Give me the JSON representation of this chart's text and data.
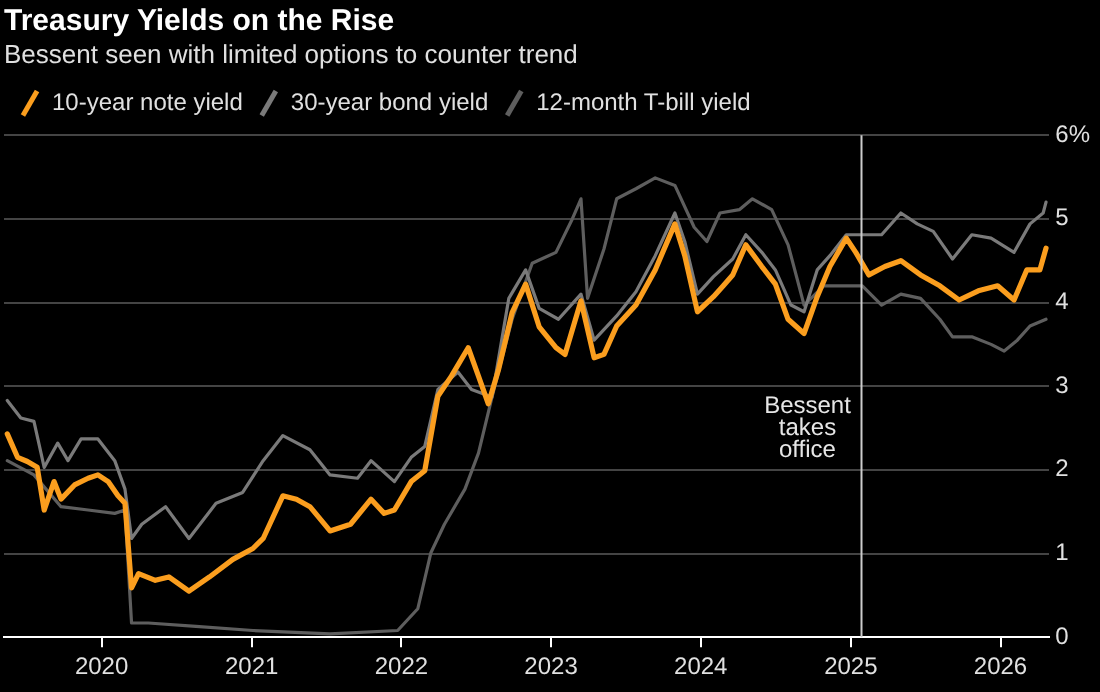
{
  "chart_data": {
    "type": "line",
    "title": "Treasury Yields on the Rise",
    "subtitle": "Bessent seen with limited options to counter trend",
    "xlim": [
      "2019-05-08",
      "2026-04-30"
    ],
    "xticks": [
      "2020",
      "2021",
      "2022",
      "2023",
      "2024",
      "2025",
      "2026"
    ],
    "ylim": [
      0,
      6
    ],
    "yticks": [
      0,
      1,
      2,
      3,
      4,
      5,
      {
        "value": 6,
        "label": "6%"
      }
    ],
    "grid": "y",
    "legend": "top left",
    "ref_lines": [
      {
        "axis": "x",
        "value": "2025-01-27",
        "label": "Bessent takes office",
        "color": "#cccccc"
      }
    ],
    "series": [
      {
        "name": "10-year note yield",
        "color": "#fb9e1e",
        "x": [
          "2019-05-16",
          "2019-06-10",
          "2019-07-04",
          "2019-07-28",
          "2019-08-14",
          "2019-09-07",
          "2019-09-24",
          "2019-10-27",
          "2019-11-29",
          "2019-12-23",
          "2020-01-17",
          "2020-02-10",
          "2020-02-27",
          "2020-03-14",
          "2020-03-31",
          "2020-05-11",
          "2020-06-13",
          "2020-08-01",
          "2020-09-20",
          "2020-11-16",
          "2021-01-04",
          "2021-01-29",
          "2021-03-18",
          "2021-04-20",
          "2021-05-23",
          "2021-07-11",
          "2021-08-30",
          "2021-10-19",
          "2021-11-20",
          "2021-12-15",
          "2022-01-25",
          "2022-02-27",
          "2022-03-31",
          "2022-05-03",
          "2022-06-13",
          "2022-07-08",
          "2022-08-01",
          "2022-08-26",
          "2022-09-28",
          "2022-10-31",
          "2022-12-03",
          "2023-01-13",
          "2023-02-04",
          "2023-03-15",
          "2023-04-16",
          "2023-05-10",
          "2023-06-10",
          "2023-07-27",
          "2023-09-12",
          "2023-10-30",
          "2023-11-23",
          "2023-12-24",
          "2024-02-01",
          "2024-02-25",
          "2024-03-19",
          "2024-04-20",
          "2024-05-29",
          "2024-07-01",
          "2024-08-01",
          "2024-09-09",
          "2024-10-11",
          "2024-11-11",
          "2024-12-21",
          "2025-01-13",
          "2025-02-14",
          "2025-03-25",
          "2025-05-03",
          "2025-06-20",
          "2025-08-06",
          "2025-09-22",
          "2025-11-08",
          "2025-12-25",
          "2026-02-03",
          "2026-03-06",
          "2026-04-07",
          "2026-04-22"
        ],
        "values": [
          2.43,
          2.15,
          2.1,
          2.03,
          1.52,
          1.86,
          1.65,
          1.82,
          1.9,
          1.94,
          1.86,
          1.69,
          1.6,
          0.59,
          0.76,
          0.68,
          0.72,
          0.55,
          0.72,
          0.93,
          1.06,
          1.18,
          1.69,
          1.65,
          1.56,
          1.27,
          1.35,
          1.65,
          1.48,
          1.52,
          1.86,
          1.99,
          2.88,
          3.12,
          3.46,
          3.12,
          2.79,
          3.2,
          3.88,
          4.22,
          3.71,
          3.46,
          3.38,
          4.02,
          3.34,
          3.38,
          3.72,
          3.97,
          4.39,
          4.94,
          4.56,
          3.89,
          4.07,
          4.2,
          4.33,
          4.69,
          4.43,
          4.22,
          3.8,
          3.63,
          4.07,
          4.43,
          4.77,
          4.6,
          4.33,
          4.43,
          4.5,
          4.33,
          4.2,
          4.03,
          4.14,
          4.2,
          4.03,
          4.39,
          4.39,
          4.65
        ]
      },
      {
        "name": "30-year bond yield",
        "color": "#7a7a7a",
        "x": [
          "2019-05-16",
          "2019-06-18",
          "2019-07-20",
          "2019-08-14",
          "2019-09-16",
          "2019-10-11",
          "2019-11-12",
          "2019-12-23",
          "2020-02-02",
          "2020-02-27",
          "2020-03-14",
          "2020-04-08",
          "2020-06-05",
          "2020-08-01",
          "2020-10-06",
          "2020-12-10",
          "2021-01-29",
          "2021-03-18",
          "2021-05-23",
          "2021-07-11",
          "2021-09-16",
          "2021-10-19",
          "2021-12-15",
          "2022-01-25",
          "2022-02-27",
          "2022-03-31",
          "2022-05-19",
          "2022-06-21",
          "2022-08-10",
          "2022-09-20",
          "2022-10-31",
          "2022-12-03",
          "2023-01-19",
          "2023-03-15",
          "2023-04-16",
          "2023-06-10",
          "2023-07-27",
          "2023-09-12",
          "2023-10-30",
          "2023-11-23",
          "2023-12-24",
          "2024-02-01",
          "2024-03-19",
          "2024-04-20",
          "2024-05-29",
          "2024-07-01",
          "2024-08-08",
          "2024-09-09",
          "2024-10-11",
          "2024-11-11",
          "2024-12-21",
          "2025-01-29",
          "2025-03-17",
          "2025-05-03",
          "2025-06-12",
          "2025-07-21",
          "2025-09-06",
          "2025-10-23",
          "2025-12-09",
          "2026-02-03",
          "2026-03-14",
          "2026-04-15",
          "2026-04-22"
        ],
        "values": [
          2.83,
          2.62,
          2.58,
          2.03,
          2.32,
          2.11,
          2.37,
          2.37,
          2.11,
          1.77,
          1.18,
          1.35,
          1.56,
          1.18,
          1.6,
          1.73,
          2.11,
          2.41,
          2.24,
          1.94,
          1.9,
          2.11,
          1.86,
          2.15,
          2.28,
          2.96,
          3.17,
          2.96,
          2.87,
          4.05,
          4.39,
          3.93,
          3.8,
          4.1,
          3.55,
          3.84,
          4.13,
          4.56,
          5.07,
          4.73,
          4.1,
          4.31,
          4.52,
          4.81,
          4.6,
          4.39,
          3.97,
          3.89,
          4.39,
          4.56,
          4.81,
          4.81,
          4.81,
          5.07,
          4.94,
          4.85,
          4.52,
          4.81,
          4.77,
          4.6,
          4.94,
          5.07,
          5.2
        ]
      },
      {
        "name": "12-month T-bill yield",
        "color": "#5e5e5e",
        "x": [
          "2019-05-16",
          "2019-07-20",
          "2019-09-24",
          "2019-11-29",
          "2020-02-02",
          "2020-02-27",
          "2020-03-14",
          "2020-04-24",
          "2020-08-18",
          "2021-01-04",
          "2021-07-11",
          "2021-12-23",
          "2022-02-10",
          "2022-03-14",
          "2022-04-16",
          "2022-06-05",
          "2022-07-08",
          "2022-08-10",
          "2022-09-28",
          "2022-11-16",
          "2023-01-13",
          "2023-02-20",
          "2023-03-15",
          "2023-03-31",
          "2023-05-10",
          "2023-06-10",
          "2023-07-27",
          "2023-09-12",
          "2023-10-30",
          "2023-12-16",
          "2024-01-16",
          "2024-02-17",
          "2024-04-04",
          "2024-05-06",
          "2024-06-22",
          "2024-08-01",
          "2024-09-09",
          "2024-10-27",
          "2024-12-21",
          "2025-01-29",
          "2025-03-17",
          "2025-05-03",
          "2025-06-20",
          "2025-08-06",
          "2025-09-06",
          "2025-10-23",
          "2025-12-09",
          "2026-01-10",
          "2026-02-11",
          "2026-03-14",
          "2026-04-22"
        ],
        "values": [
          2.11,
          1.94,
          1.56,
          1.52,
          1.48,
          1.52,
          0.17,
          0.17,
          0.13,
          0.08,
          0.04,
          0.08,
          0.34,
          1.01,
          1.35,
          1.77,
          2.2,
          2.87,
          3.8,
          4.47,
          4.6,
          4.98,
          5.24,
          4.05,
          4.64,
          5.24,
          5.36,
          5.49,
          5.4,
          4.9,
          4.73,
          5.07,
          5.11,
          5.24,
          5.11,
          4.69,
          3.97,
          4.2,
          4.2,
          4.2,
          3.97,
          4.1,
          4.05,
          3.8,
          3.59,
          3.59,
          3.5,
          3.42,
          3.55,
          3.72,
          3.8
        ]
      }
    ]
  }
}
